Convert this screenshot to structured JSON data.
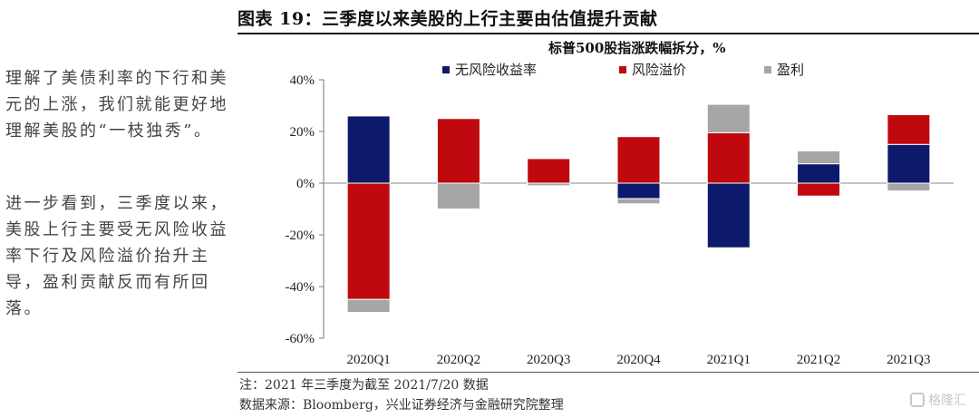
{
  "figure_title": "图表 19：三季度以来美股的上行主要由估值提升贡献",
  "side_text": [
    "理解了美债利率的下行和美元的上涨，我们就能更好地理解美股的“一枝独秀”。",
    "进一步看到，三季度以来，美股上行主要受无风险收益率下行及风险溢价抬升主导，盈利贡献反而有所回落。"
  ],
  "notes": [
    "注：2021 年三季度为截至 2021/7/20 数据",
    "数据来源：Bloomberg，兴业证券经济与金融研究院整理"
  ],
  "watermark": "格隆汇",
  "chart_data": {
    "type": "bar",
    "stacked": true,
    "title": "标普500股指涨跌幅拆分，%",
    "categories": [
      "2020Q1",
      "2020Q2",
      "2020Q3",
      "2020Q4",
      "2021Q1",
      "2021Q2",
      "2021Q3"
    ],
    "series": [
      {
        "name": "无风险收益率",
        "color": "#0d1a6b",
        "values": [
          26,
          0,
          0,
          -6,
          -25,
          7.5,
          15
        ]
      },
      {
        "name": "风险溢价",
        "color": "#c0090f",
        "values": [
          -45,
          25,
          9.5,
          18,
          19.5,
          -5,
          11.5
        ]
      },
      {
        "name": "盈利",
        "color": "#a6a6a6",
        "values": [
          -5,
          -10,
          -1,
          -2,
          11,
          5,
          -3
        ]
      }
    ],
    "ylim": [
      -60,
      40
    ],
    "yticks": [
      -60,
      -40,
      -20,
      0,
      20,
      40
    ],
    "ytick_labels": [
      "-60%",
      "-40%",
      "-20%",
      "0%",
      "20%",
      "40%"
    ],
    "legend_position": "top",
    "grid": false
  }
}
